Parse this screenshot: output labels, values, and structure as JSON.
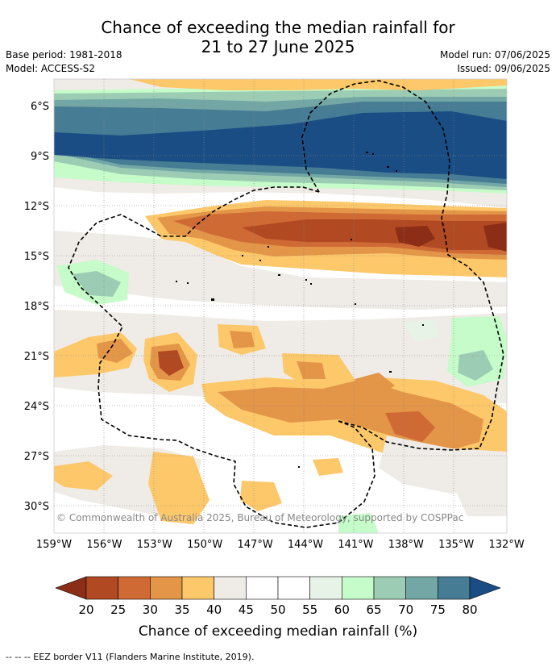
{
  "title": {
    "line1": "Chance of exceeding the median rainfall for",
    "line2": "21 to 27 June 2025"
  },
  "meta": {
    "base_period": "Base period: 1981-2018",
    "model": "Model: ACCESS-S2",
    "model_run": "Model run: 07/06/2025",
    "issued": "Issued: 09/06/2025"
  },
  "map": {
    "lat_labels": [
      "6°S",
      "9°S",
      "12°S",
      "15°S",
      "18°S",
      "21°S",
      "24°S",
      "27°S",
      "30°S"
    ],
    "lon_labels": [
      "159°W",
      "156°W",
      "153°W",
      "150°W",
      "147°W",
      "144°W",
      "141°W",
      "138°W",
      "135°W",
      "132°W"
    ],
    "copyright": "© Commonwealth of Australia 2025, Bureau of Meteorology, supported by COSPPac"
  },
  "colorbar": {
    "label": "Chance of exceeding median rainfall (%)",
    "ticks": [
      "20",
      "25",
      "30",
      "35",
      "40",
      "45",
      "50",
      "55",
      "60",
      "65",
      "70",
      "75",
      "80"
    ],
    "colors": [
      "#8c2d18",
      "#b14a23",
      "#cf6a35",
      "#e39548",
      "#fdc86a",
      "#efebe6",
      "#ffffff",
      "#ffffff",
      "#e8f3e8",
      "#c6fcc9",
      "#9ccdb4",
      "#73a7a5",
      "#467c94",
      "#1a4d84"
    ]
  },
  "footer": "--  --  -- EEZ border V11 (Flanders Marine Institute, 2019)."
}
